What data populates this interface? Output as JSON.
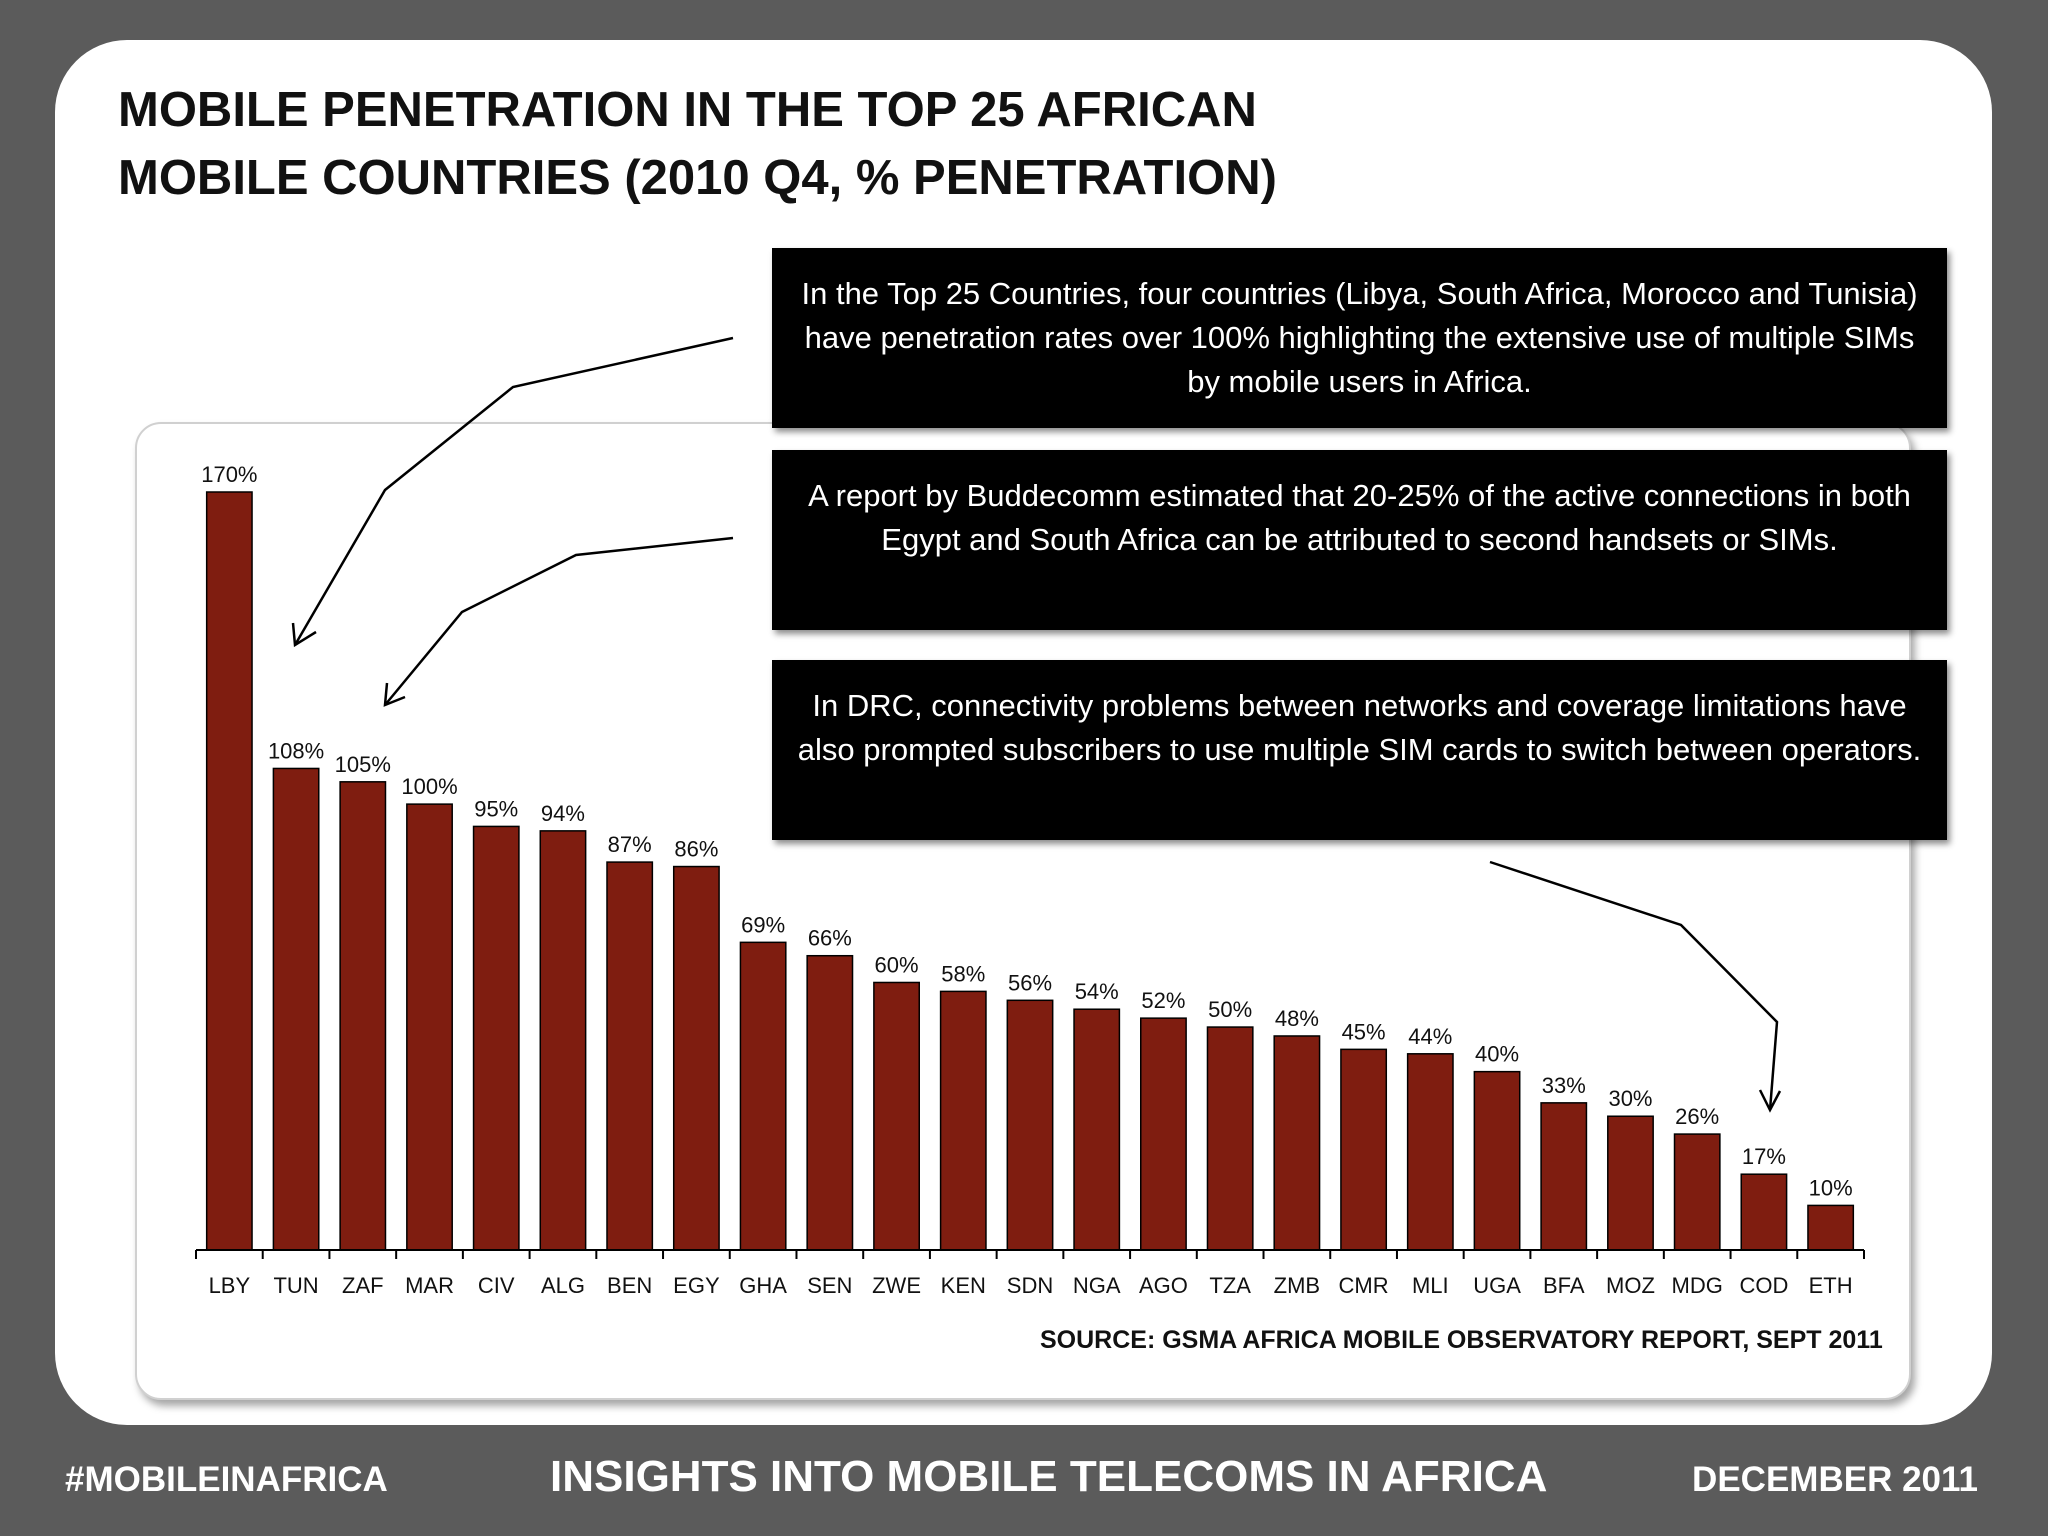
{
  "title_line1": "MOBILE PENETRATION IN THE TOP 25 AFRICAN",
  "title_line2": "MOBILE COUNTRIES (2010 Q4, % PENETRATION)",
  "callouts": [
    "In the Top 25 Countries, four countries (Libya, South Africa, Morocco and Tunisia) have penetration rates over 100% highlighting the extensive use of multiple SIMs by mobile users in Africa.",
    "A report by Buddecomm estimated that 20-25% of the active connections in both Egypt and South Africa can be attributed to second handsets or SIMs.",
    "In DRC, connectivity problems between networks and coverage limitations have also prompted subscribers to use multiple SIM cards to switch between operators."
  ],
  "source": "SOURCE: GSMA AFRICA MOBILE OBSERVATORY REPORT, SEPT 2011",
  "footer": {
    "left": "#MOBILEINAFRICA",
    "center": "INSIGHTS INTO MOBILE TELECOMS IN AFRICA",
    "right": "DECEMBER 2011"
  },
  "colors": {
    "bar": "#7f1d10",
    "background": "#5b5b5b"
  },
  "chart_data": {
    "type": "bar",
    "categories": [
      "LBY",
      "TUN",
      "ZAF",
      "MAR",
      "CIV",
      "ALG",
      "BEN",
      "EGY",
      "GHA",
      "SEN",
      "ZWE",
      "KEN",
      "SDN",
      "NGA",
      "AGO",
      "TZA",
      "ZMB",
      "CMR",
      "MLI",
      "UGA",
      "BFA",
      "MOZ",
      "MDG",
      "COD",
      "ETH"
    ],
    "values": [
      170,
      108,
      105,
      100,
      95,
      94,
      87,
      86,
      69,
      66,
      60,
      58,
      56,
      54,
      52,
      50,
      48,
      45,
      44,
      40,
      33,
      30,
      26,
      17,
      10
    ],
    "data_labels": [
      "170%",
      "108%",
      "105%",
      "100%",
      "95%",
      "94%",
      "87%",
      "86%",
      "69%",
      "66%",
      "60%",
      "58%",
      "56%",
      "54%",
      "52%",
      "50%",
      "48%",
      "45%",
      "44%",
      "40%",
      "33%",
      "30%",
      "26%",
      "17%",
      "10%"
    ],
    "ylim": [
      0,
      170
    ],
    "grid": false
  }
}
